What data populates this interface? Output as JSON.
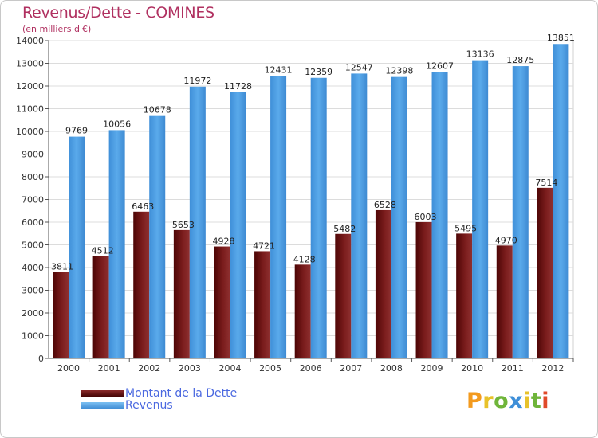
{
  "header": {
    "title": "Revenus/Dette - COMINES",
    "subtitle": "(en milliers d'€)"
  },
  "colors": {
    "debt": "#7a1a1a",
    "revenue": "#4ea0e6",
    "title": "#b03060",
    "legend_text": "#4a68e0"
  },
  "legend": {
    "placement": "bottom-left",
    "items": [
      {
        "label": "Montant de la Dette",
        "color": "#6a0f0f"
      },
      {
        "label": "Revenus",
        "color": "#4ea0e6"
      }
    ]
  },
  "logo": {
    "text": "Proxiti"
  },
  "chart_data": {
    "type": "bar",
    "title": "Revenus/Dette - COMINES",
    "ylabel": "(en milliers d'€)",
    "xlabel": "",
    "ylim": [
      0,
      14000
    ],
    "yticks": [
      0,
      1000,
      2000,
      3000,
      4000,
      5000,
      6000,
      7000,
      8000,
      9000,
      10000,
      11000,
      12000,
      13000,
      14000
    ],
    "grid": true,
    "categories": [
      "2000",
      "2001",
      "2002",
      "2003",
      "2004",
      "2005",
      "2006",
      "2007",
      "2008",
      "2009",
      "2010",
      "2011",
      "2012"
    ],
    "series": [
      {
        "name": "Montant de la Dette",
        "values": [
          3811,
          4512,
          6463,
          5653,
          4928,
          4721,
          4128,
          5482,
          6528,
          6003,
          5495,
          4970,
          7514
        ]
      },
      {
        "name": "Revenus",
        "values": [
          9769,
          10056,
          10678,
          11972,
          11728,
          12431,
          12359,
          12547,
          12398,
          12607,
          13136,
          12875,
          13851
        ]
      }
    ]
  }
}
